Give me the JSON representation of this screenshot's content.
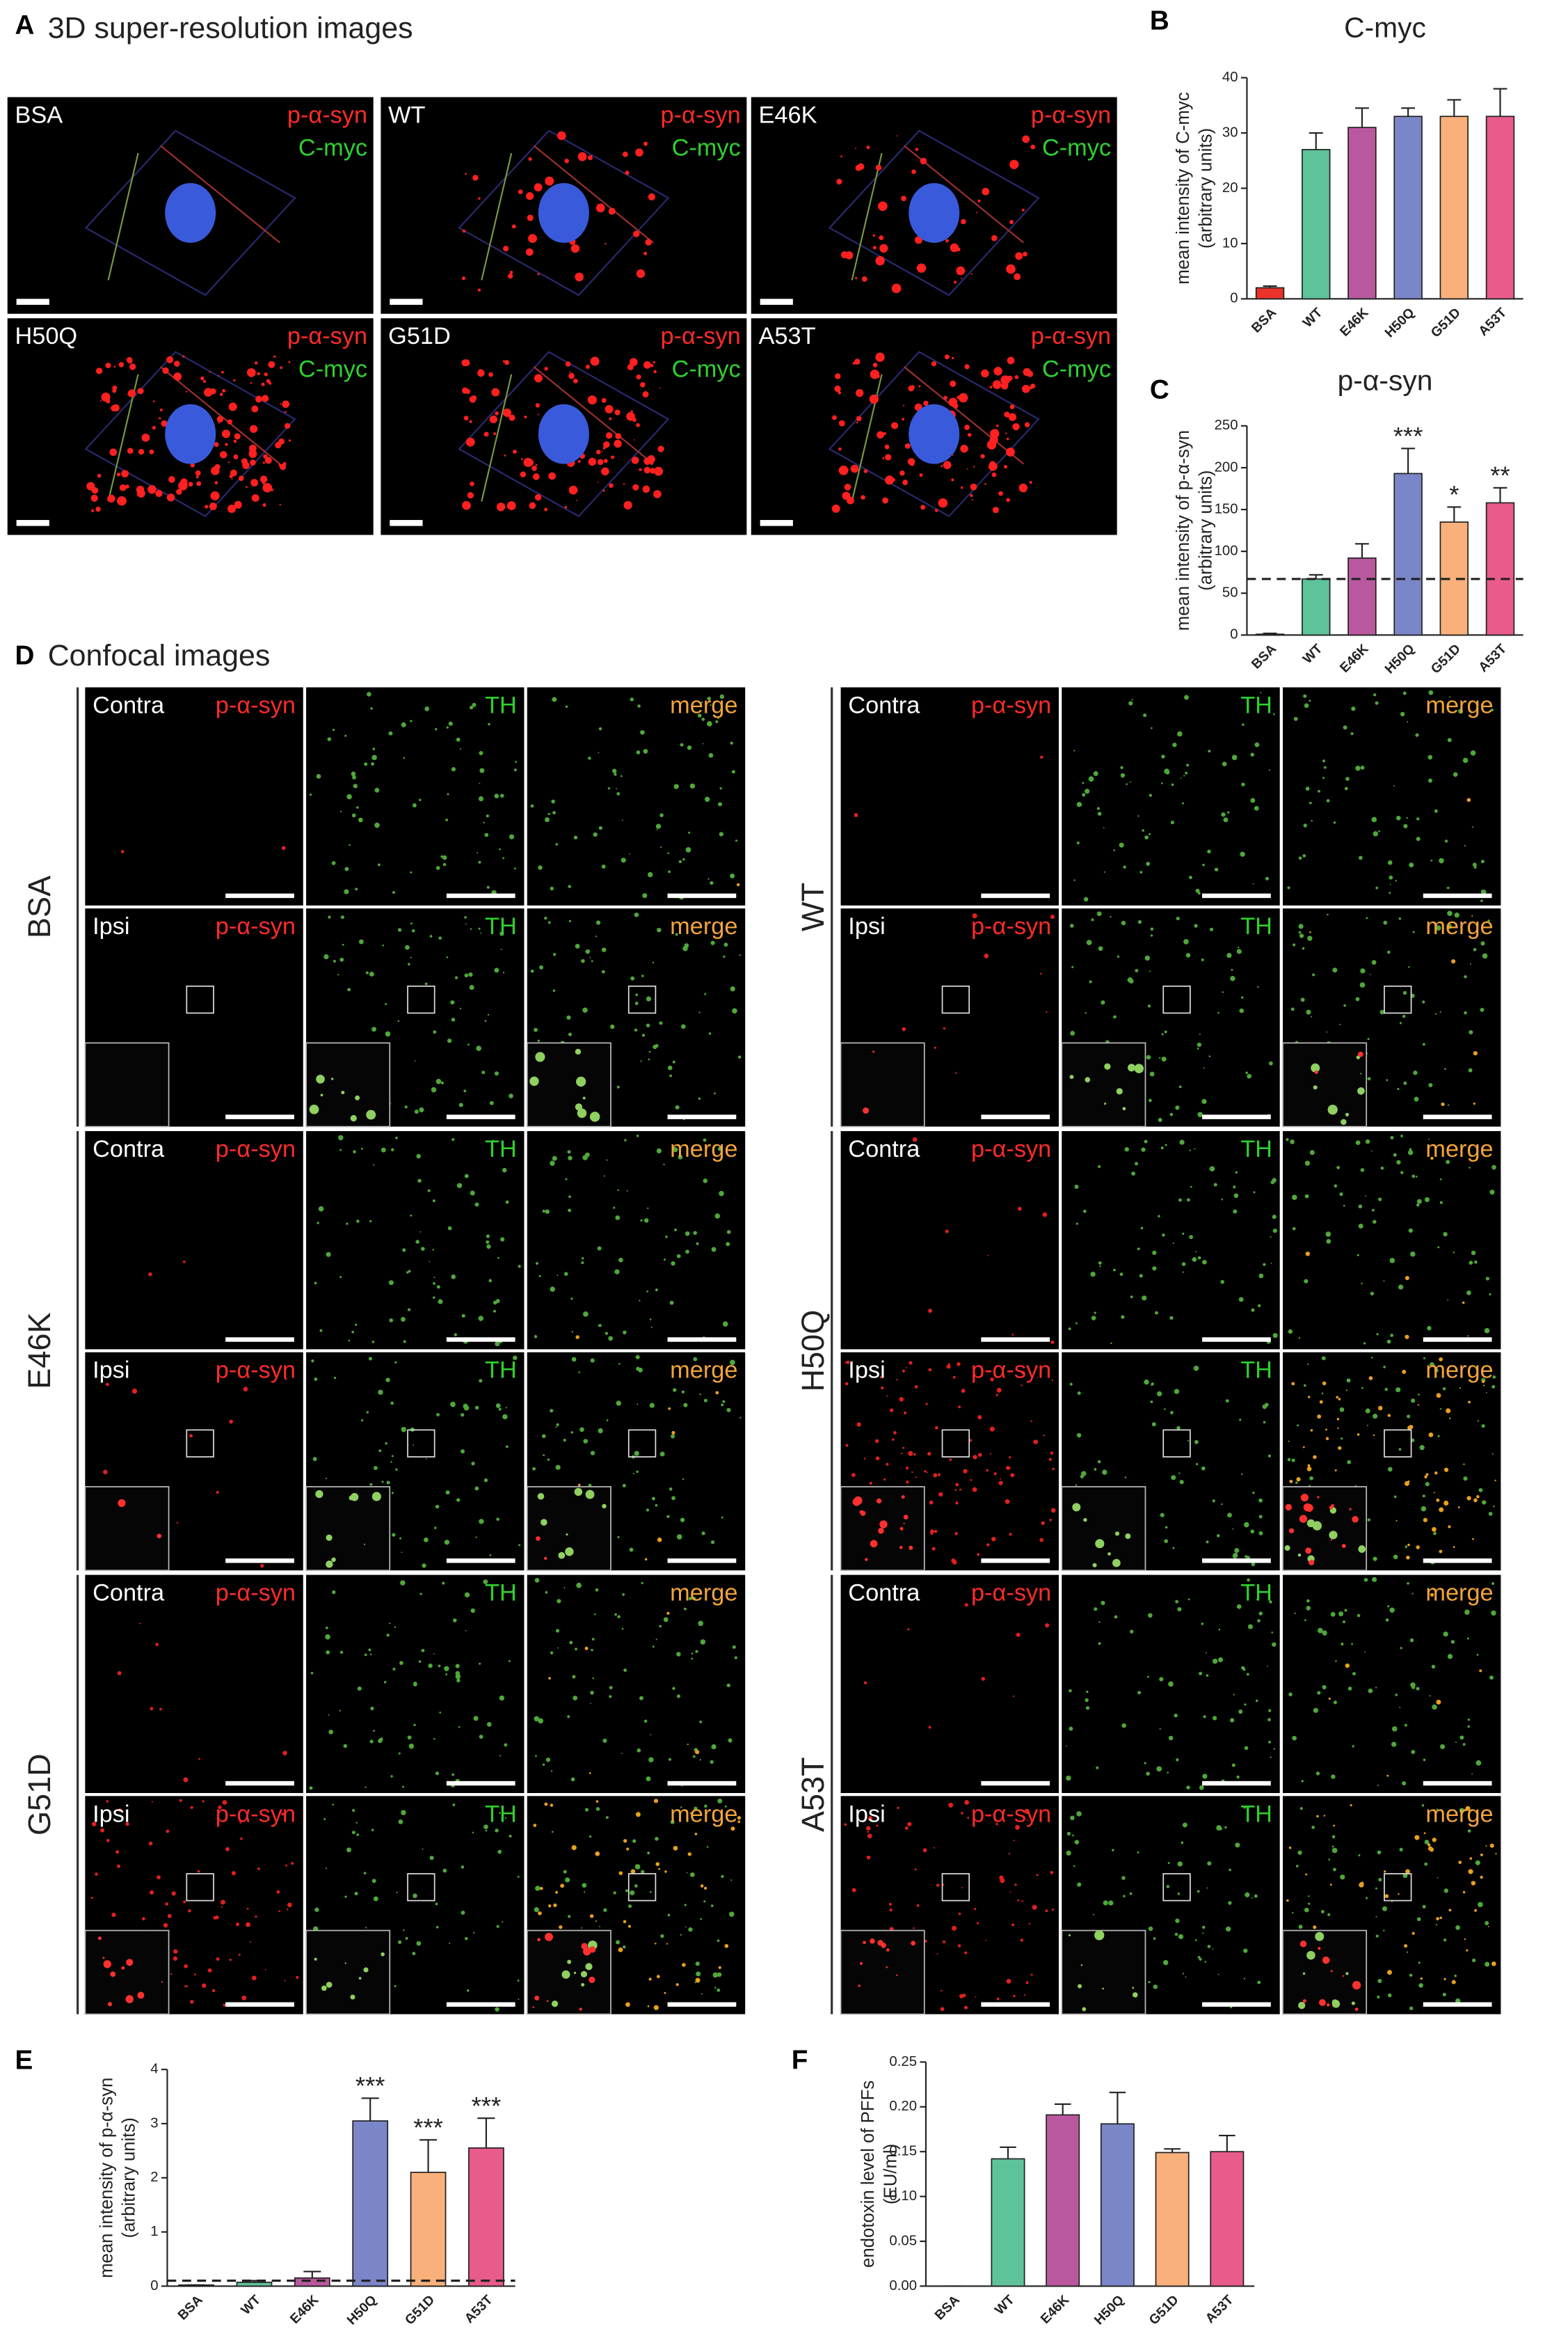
{
  "panel_labels": [
    "A",
    "B",
    "C",
    "D",
    "E",
    "F"
  ],
  "panel_a": {
    "title": "3D super-resolution images",
    "images": [
      {
        "label": "BSA",
        "channels": [
          "p-α-syn",
          "C-myc"
        ]
      },
      {
        "label": "WT",
        "channels": [
          "p-α-syn",
          "C-myc"
        ]
      },
      {
        "label": "E46K",
        "channels": [
          "p-α-syn",
          "C-myc"
        ]
      },
      {
        "label": "H50Q",
        "channels": [
          "p-α-syn",
          "C-myc"
        ]
      },
      {
        "label": "G51D",
        "channels": [
          "p-α-syn",
          "C-myc"
        ]
      },
      {
        "label": "A53T",
        "channels": [
          "p-α-syn",
          "C-myc"
        ]
      }
    ]
  },
  "panel_d": {
    "title": "Confocal images",
    "groups": [
      {
        "label": "BSA",
        "rows": [
          {
            "label": "Contra",
            "channels": [
              "p-α-syn",
              "TH",
              "merge"
            ]
          },
          {
            "label": "Ipsi",
            "channels": [
              "p-α-syn",
              "TH",
              "merge"
            ]
          }
        ]
      },
      {
        "label": "WT",
        "rows": [
          {
            "label": "Contra",
            "channels": [
              "p-α-syn",
              "TH",
              "merge"
            ]
          },
          {
            "label": "Ipsi",
            "channels": [
              "p-α-syn",
              "TH",
              "merge"
            ]
          }
        ]
      },
      {
        "label": "E46K",
        "rows": [
          {
            "label": "Contra",
            "channels": [
              "p-α-syn",
              "TH",
              "merge"
            ]
          },
          {
            "label": "Ipsi",
            "channels": [
              "p-α-syn",
              "TH",
              "merge"
            ]
          }
        ]
      },
      {
        "label": "H50Q",
        "rows": [
          {
            "label": "Contra",
            "channels": [
              "p-α-syn",
              "TH",
              "merge"
            ]
          },
          {
            "label": "Ipsi",
            "channels": [
              "p-α-syn",
              "TH",
              "merge"
            ]
          }
        ]
      },
      {
        "label": "G51D",
        "rows": [
          {
            "label": "Contra",
            "channels": [
              "p-α-syn",
              "TH",
              "merge"
            ]
          },
          {
            "label": "Ipsi",
            "channels": [
              "p-α-syn",
              "TH",
              "merge"
            ]
          }
        ]
      },
      {
        "label": "A53T",
        "rows": [
          {
            "label": "Contra",
            "channels": [
              "p-α-syn",
              "TH",
              "merge"
            ]
          },
          {
            "label": "Ipsi",
            "channels": [
              "p-α-syn",
              "TH",
              "merge"
            ]
          }
        ]
      }
    ]
  },
  "chart_data": [
    {
      "type": "bar",
      "title": "C-myc",
      "ylabel": [
        "mean intensity of C-myc",
        "(arbitrary units)"
      ],
      "categories": [
        "BSA",
        "WT",
        "E46K",
        "H50Q",
        "G51D",
        "A53T"
      ],
      "values": [
        2,
        27,
        31,
        33,
        33,
        33
      ],
      "errors": [
        0.3,
        3,
        3.5,
        1.5,
        3,
        5
      ],
      "colors": [
        "#e8322b",
        "#5fc39a",
        "#b9589f",
        "#7b86c9",
        "#f9b07a",
        "#e95b8a"
      ],
      "ylim": [
        0,
        40
      ],
      "yticks": [
        0,
        10,
        20,
        30,
        40
      ]
    },
    {
      "type": "bar",
      "title": "p-α-syn",
      "ylabel": [
        "mean intensity of p-α-syn",
        "(arbitrary units)"
      ],
      "categories": [
        "BSA",
        "WT",
        "E46K",
        "H50Q",
        "G51D",
        "A53T"
      ],
      "values": [
        1,
        67,
        92,
        193,
        135,
        158
      ],
      "errors": [
        1,
        5,
        17,
        30,
        18,
        18
      ],
      "significance": [
        null,
        null,
        null,
        "***",
        "*",
        "**"
      ],
      "reference_line": 67,
      "colors": [
        "#e8322b",
        "#5fc39a",
        "#b9589f",
        "#7b86c9",
        "#f9b07a",
        "#e95b8a"
      ],
      "ylim": [
        0,
        250
      ],
      "yticks": [
        0,
        50,
        100,
        150,
        200,
        250
      ]
    },
    {
      "type": "bar",
      "ylabel": [
        "mean intensity of p-α-syn",
        "(arbitrary units)"
      ],
      "categories": [
        "BSA",
        "WT",
        "E46K",
        "H50Q",
        "G51D",
        "A53T"
      ],
      "values": [
        0.02,
        0.07,
        0.15,
        3.05,
        2.1,
        2.55
      ],
      "errors": [
        0,
        0.03,
        0.12,
        0.42,
        0.6,
        0.55
      ],
      "significance": [
        null,
        null,
        null,
        "***",
        "***",
        "***"
      ],
      "reference_line": 0.1,
      "colors": [
        "#e8322b",
        "#5fc39a",
        "#b9589f",
        "#7b86c9",
        "#f9b07a",
        "#e95b8a"
      ],
      "ylim": [
        0,
        4
      ],
      "yticks": [
        0,
        1,
        2,
        3,
        4
      ]
    },
    {
      "type": "bar",
      "ylabel": [
        "endotoxin level of PFFs",
        "(EU/ml)"
      ],
      "categories": [
        "BSA",
        "WT",
        "E46K",
        "H50Q",
        "G51D",
        "A53T"
      ],
      "values": [
        0,
        0.142,
        0.191,
        0.181,
        0.149,
        0.15
      ],
      "errors": [
        0,
        0.013,
        0.012,
        0.035,
        0.004,
        0.018
      ],
      "colors": [
        "#e8322b",
        "#5fc39a",
        "#b9589f",
        "#7b86c9",
        "#f9b07a",
        "#e95b8a"
      ],
      "ylim": [
        0,
        0.25
      ],
      "yticks": [
        {
          "value": 0,
          "label": "0.00"
        },
        {
          "value": 0.05,
          "label": "0.05"
        },
        {
          "value": 0.1,
          "label": "0.10"
        },
        {
          "value": 0.15,
          "label": "0.15"
        },
        {
          "value": 0.2,
          "label": "0.20"
        },
        {
          "value": 0.25,
          "label": "0.25"
        }
      ]
    }
  ]
}
